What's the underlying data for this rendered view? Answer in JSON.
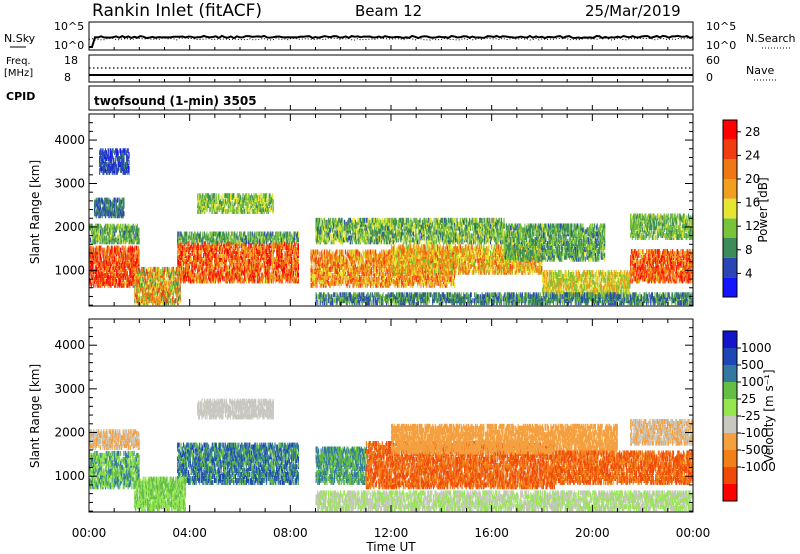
{
  "header": {
    "site": "Rankin Inlet (fitACF)",
    "beam": "Beam 12",
    "date": "25/Mar/2019"
  },
  "noise_panel": {
    "left_label": "N.Sky",
    "left_ticks": [
      "10^5",
      "10^0"
    ],
    "right_label": "N.Search",
    "right_ticks": [
      "10^5",
      "10^0"
    ]
  },
  "freq_panel": {
    "left_label_1": "Freq.",
    "left_label_2": "[MHz]",
    "left_ticks": [
      "18",
      "8"
    ],
    "right_label": "Nave",
    "right_ticks": [
      "60",
      "0"
    ]
  },
  "cpid_panel": {
    "label": "CPID",
    "program": "twofsound (1-min) 3505"
  },
  "time_axis": {
    "ticks": [
      "00:00",
      "04:00",
      "08:00",
      "12:00",
      "16:00",
      "20:00",
      "00:00"
    ],
    "label": "Time UT",
    "range_hours": [
      0,
      24
    ]
  },
  "colors": {
    "power": [
      "#1414ff",
      "#2a46b4",
      "#3c8c5a",
      "#78c23c",
      "#e6e632",
      "#f0a01e",
      "#f07814",
      "#f03c0f",
      "#ff0000"
    ],
    "velocity": [
      "#ff0000",
      "#f04a0a",
      "#f28018",
      "#f5a040",
      "#c8c8c0",
      "#96e650",
      "#64be46",
      "#3278a0",
      "#1e46b4",
      "#1414c8"
    ]
  },
  "chart_data": [
    {
      "type": "heatmap",
      "name": "power",
      "xlabel": "Time UT",
      "ylabel": "Slant Range [km]",
      "xlim": [
        0,
        24
      ],
      "ylim": [
        180,
        4600
      ],
      "yticks": [
        1000,
        2000,
        3000,
        4000
      ],
      "colorbar": {
        "label": "Power [dB]",
        "ticks": [
          "4",
          "8",
          "12",
          "16",
          "20",
          "24",
          "28"
        ],
        "range": [
          0,
          30
        ]
      },
      "scatter_bands": [
        {
          "t0": 0.0,
          "t1": 2.0,
          "r0": 600,
          "r1": 1500,
          "v0": 18,
          "v1": 30
        },
        {
          "t0": 0.0,
          "t1": 2.0,
          "r0": 1600,
          "r1": 2000,
          "v0": 6,
          "v1": 14
        },
        {
          "t0": 0.2,
          "t1": 1.4,
          "r0": 2200,
          "r1": 2600,
          "v0": 4,
          "v1": 10
        },
        {
          "t0": 0.4,
          "t1": 1.6,
          "r0": 3200,
          "r1": 3700,
          "v0": 2,
          "v1": 8
        },
        {
          "t0": 3.5,
          "t1": 8.3,
          "r0": 700,
          "r1": 1600,
          "v0": 16,
          "v1": 30
        },
        {
          "t0": 3.5,
          "t1": 8.3,
          "r0": 1600,
          "r1": 1800,
          "v0": 6,
          "v1": 14
        },
        {
          "t0": 4.3,
          "t1": 7.3,
          "r0": 2300,
          "r1": 2700,
          "v0": 8,
          "v1": 16
        },
        {
          "t0": 1.8,
          "t1": 3.6,
          "r0": 200,
          "r1": 1000,
          "v0": 8,
          "v1": 26
        },
        {
          "t0": 8.8,
          "t1": 14.5,
          "r0": 600,
          "r1": 1400,
          "v0": 14,
          "v1": 26
        },
        {
          "t0": 9.0,
          "t1": 16.5,
          "r0": 1600,
          "r1": 2100,
          "v0": 6,
          "v1": 16
        },
        {
          "t0": 12.0,
          "t1": 18.0,
          "r0": 900,
          "r1": 1500,
          "v0": 12,
          "v1": 24
        },
        {
          "t0": 16.5,
          "t1": 20.5,
          "r0": 1200,
          "r1": 2000,
          "v0": 6,
          "v1": 14
        },
        {
          "t0": 18.0,
          "t1": 21.5,
          "r0": 400,
          "r1": 900,
          "v0": 10,
          "v1": 20
        },
        {
          "t0": 21.5,
          "t1": 24.0,
          "r0": 700,
          "r1": 1400,
          "v0": 16,
          "v1": 30
        },
        {
          "t0": 21.5,
          "t1": 24.0,
          "r0": 1700,
          "r1": 2200,
          "v0": 8,
          "v1": 14
        },
        {
          "t0": 9.0,
          "t1": 24.0,
          "r0": 200,
          "r1": 400,
          "v0": 4,
          "v1": 12
        }
      ]
    },
    {
      "type": "heatmap",
      "name": "velocity",
      "xlabel": "Time UT",
      "ylabel": "Slant Range [km]",
      "xlim": [
        0,
        24
      ],
      "ylim": [
        180,
        4600
      ],
      "yticks": [
        1000,
        2000,
        3000,
        4000
      ],
      "colorbar": {
        "label": "Velocity [m s⁻¹]",
        "ticks": [
          "1000",
          "500",
          "100",
          "25",
          "-25",
          "-100",
          "-500",
          "-1000"
        ]
      },
      "scatter_bands": [
        {
          "t0": 0.0,
          "t1": 2.0,
          "r0": 700,
          "r1": 1500,
          "v0": 5,
          "v1": 8
        },
        {
          "t0": 0.0,
          "t1": 2.0,
          "r0": 1600,
          "r1": 2000,
          "v0": 3,
          "v1": 5
        },
        {
          "t0": 3.5,
          "t1": 8.3,
          "r0": 800,
          "r1": 1700,
          "v0": 6,
          "v1": 9
        },
        {
          "t0": 4.3,
          "t1": 7.3,
          "r0": 2300,
          "r1": 2700,
          "v0": 4,
          "v1": 5
        },
        {
          "t0": 1.8,
          "t1": 3.8,
          "r0": 200,
          "r1": 900,
          "v0": 5,
          "v1": 7
        },
        {
          "t0": 9.0,
          "t1": 11.0,
          "r0": 800,
          "r1": 1600,
          "v0": 6,
          "v1": 8
        },
        {
          "t0": 11.0,
          "t1": 18.5,
          "r0": 700,
          "r1": 1700,
          "v0": 1,
          "v1": 3
        },
        {
          "t0": 12.0,
          "t1": 21.0,
          "r0": 1500,
          "r1": 2100,
          "v0": 3,
          "v1": 4
        },
        {
          "t0": 18.5,
          "t1": 24.0,
          "r0": 800,
          "r1": 1500,
          "v0": 1,
          "v1": 3
        },
        {
          "t0": 21.5,
          "t1": 24.0,
          "r0": 1700,
          "r1": 2200,
          "v0": 3,
          "v1": 5
        },
        {
          "t0": 9.0,
          "t1": 24.0,
          "r0": 200,
          "r1": 600,
          "v0": 4,
          "v1": 6
        }
      ]
    }
  ]
}
